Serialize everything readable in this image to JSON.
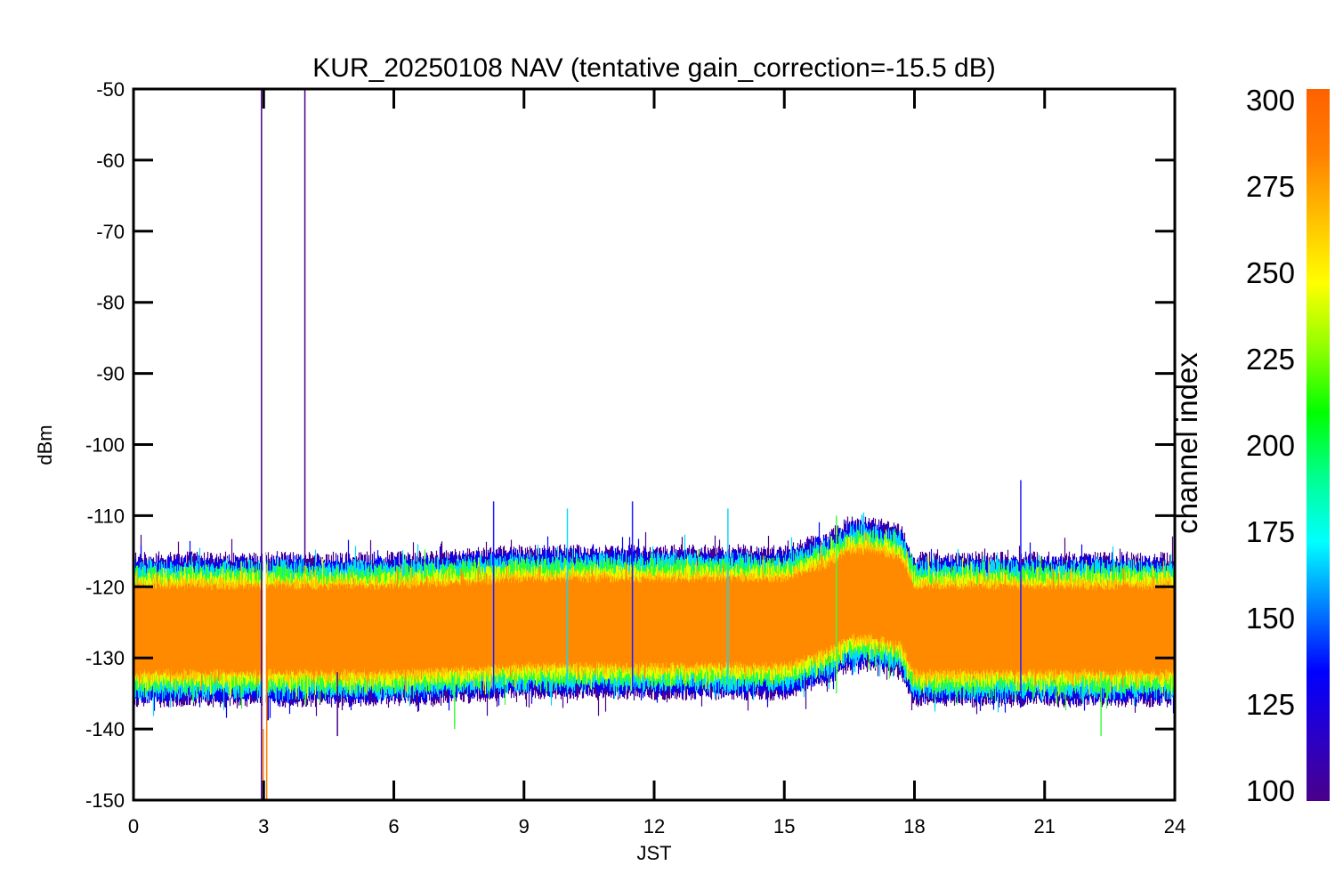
{
  "chart_data": {
    "type": "line",
    "title": "KUR_20250108 NAV (tentative gain_correction=-15.5 dB)",
    "xlabel": "JST",
    "ylabel": "dBm",
    "xlim": [
      0,
      24
    ],
    "ylim": [
      -150,
      -50
    ],
    "xticks": [
      0,
      3,
      6,
      9,
      12,
      15,
      18,
      21,
      24
    ],
    "yticks": [
      -50,
      -60,
      -70,
      -80,
      -90,
      -100,
      -110,
      -120,
      -130,
      -140,
      -150
    ],
    "grid": false,
    "series_description": "many noisy traces, one per channel index 100-300, coloured by channel",
    "band": {
      "x": [
        0,
        3,
        6,
        9,
        12,
        15,
        16,
        16.5,
        17,
        17.7,
        18,
        21,
        24
      ],
      "center": [
        -126,
        -126,
        -126,
        -125,
        -125,
        -125,
        -123,
        -121,
        -121,
        -122,
        -126,
        -126,
        -126
      ],
      "core_halfwidth": 6,
      "outer_halfwidth": 9.5
    },
    "gaps": [
      [
        2.98,
        3.07
      ]
    ],
    "spikes": [
      {
        "x": 2.95,
        "y_low": -150,
        "y_high": -50,
        "color": "#4a008a"
      },
      {
        "x": 3.95,
        "y_low": -117,
        "y_high": -50,
        "color": "#4a008a"
      },
      {
        "x": 2.99,
        "y_low": -150,
        "y_high": -128,
        "color": "#ff8000"
      },
      {
        "x": 3.07,
        "y_low": -150,
        "y_high": -128,
        "color": "#ff8000"
      },
      {
        "x": 4.7,
        "y_low": -141,
        "y_high": -132,
        "color": "#4a008a"
      },
      {
        "x": 8.3,
        "y_low": -135,
        "y_high": -108,
        "color": "#1f1fff"
      },
      {
        "x": 10.0,
        "y_low": -135,
        "y_high": -109,
        "color": "#10d8ff"
      },
      {
        "x": 11.5,
        "y_low": -135,
        "y_high": -108,
        "color": "#1f1fff"
      },
      {
        "x": 13.7,
        "y_low": -135,
        "y_high": -109,
        "color": "#10d8ff"
      },
      {
        "x": 16.2,
        "y_low": -135,
        "y_high": -110,
        "color": "#40ff40"
      },
      {
        "x": 20.45,
        "y_low": -135,
        "y_high": -105,
        "color": "#1f1fff"
      },
      {
        "x": 7.4,
        "y_low": -140,
        "y_high": -132,
        "color": "#40ff40"
      },
      {
        "x": 22.3,
        "y_low": -141,
        "y_high": -132,
        "color": "#40ff40"
      }
    ],
    "colorbar": {
      "label": "channel index",
      "min": 100,
      "max": 300,
      "ticks": [
        300,
        275,
        250,
        225,
        200,
        175,
        150,
        125,
        100
      ],
      "colors": [
        "#4a008a",
        "#2a00c8",
        "#0000ff",
        "#0080ff",
        "#00ffff",
        "#00ff90",
        "#00ff00",
        "#90ff00",
        "#ffff00",
        "#ffc000",
        "#ff8000",
        "#ff6000"
      ]
    }
  }
}
